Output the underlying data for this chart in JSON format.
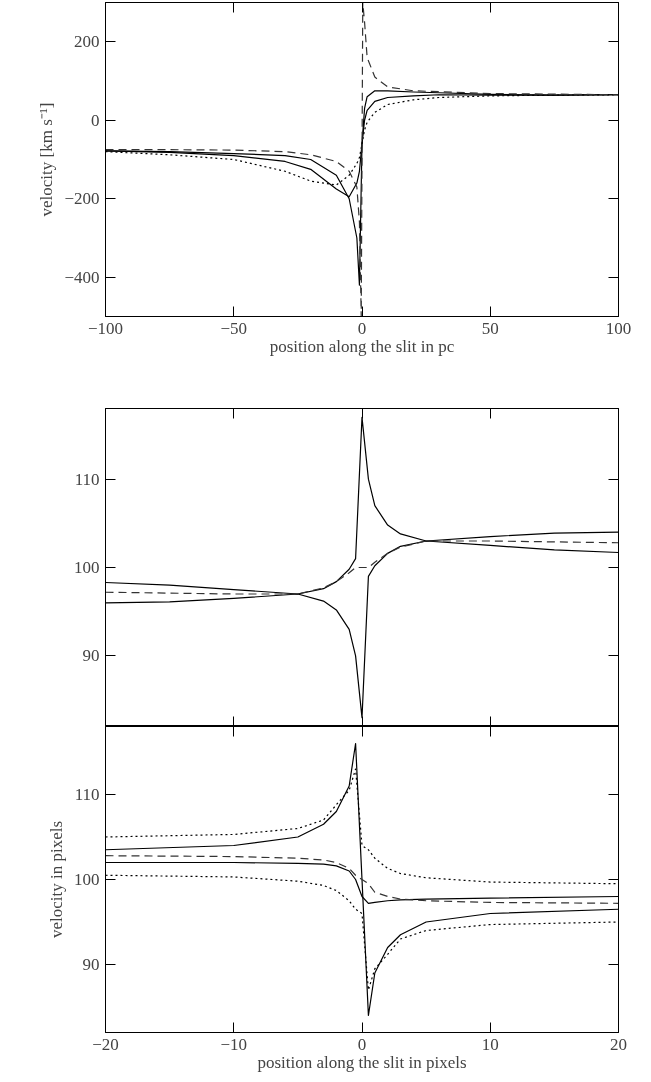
{
  "chart_data": [
    {
      "type": "line",
      "xlabel": "position along the slit in pc",
      "ylabel": "velocity [km s⁻¹]",
      "xlim": [
        -100,
        100
      ],
      "ylim": [
        -500,
        300
      ],
      "xticks": [
        -100,
        -50,
        0,
        50,
        100
      ],
      "yticks": [
        -400,
        -200,
        0,
        200
      ],
      "x": [
        -100,
        -75,
        -50,
        -30,
        -20,
        -10,
        -5,
        -2,
        -1,
        0,
        1,
        2,
        5,
        10,
        20,
        30,
        50,
        75,
        100
      ],
      "series": [
        {
          "color": "#000000",
          "line_style": "solid",
          "values": [
            -78,
            -80,
            -85,
            -90,
            -100,
            -140,
            -200,
            -300,
            -420,
            -60,
            30,
            60,
            75,
            75,
            72,
            70,
            66,
            64,
            65
          ]
        },
        {
          "color": "#000000",
          "line_style": "solid",
          "values": [
            -78,
            -82,
            -90,
            -105,
            -125,
            -175,
            -195,
            -160,
            -130,
            -60,
            0,
            25,
            48,
            58,
            62,
            65,
            64,
            64,
            65
          ]
        },
        {
          "color": "#000000",
          "line_style": "dotted",
          "values": [
            -80,
            -88,
            -100,
            -130,
            -155,
            -165,
            -140,
            -110,
            -95,
            -60,
            -25,
            -5,
            20,
            40,
            52,
            58,
            62,
            64,
            65
          ]
        },
        {
          "color": "#333333",
          "line_style": "dashed",
          "x": [
            -100,
            -75,
            -50,
            -30,
            -20,
            -10,
            -5,
            -2,
            -1,
            -0.3,
            0.3,
            1,
            2,
            5,
            10,
            20,
            50,
            100
          ],
          "values": [
            -75,
            -75,
            -76,
            -80,
            -88,
            -105,
            -130,
            -170,
            -260,
            -500,
            300,
            250,
            160,
            110,
            85,
            75,
            68,
            65
          ]
        }
      ]
    },
    {
      "type": "line",
      "xlim": [
        -20,
        20
      ],
      "ylim": [
        82,
        118
      ],
      "xticks": [
        -20,
        -10,
        0,
        10,
        20
      ],
      "yticks": [
        90,
        100,
        110
      ],
      "tick_labels": "y",
      "x": [
        -20,
        -15,
        -10,
        -5,
        -3,
        -2,
        -1,
        -0.5,
        0,
        0.5,
        1,
        2,
        3,
        5,
        10,
        15,
        20
      ],
      "series": [
        {
          "color": "#000000",
          "line_style": "solid",
          "values": [
            98.3,
            98,
            97.5,
            97,
            97.6,
            98.4,
            99.8,
            101,
            117,
            110,
            107,
            104.8,
            103.8,
            103,
            103.5,
            103.9,
            104
          ]
        },
        {
          "color": "#000000",
          "line_style": "solid",
          "values": [
            96,
            96.1,
            96.5,
            97,
            96.2,
            95.2,
            93,
            90,
            83,
            99,
            100.2,
            101.6,
            102.4,
            103,
            102.5,
            102,
            101.7
          ]
        },
        {
          "color": "#333333",
          "line_style": "dashed",
          "values": [
            97.2,
            97.1,
            97,
            97,
            97.7,
            98.4,
            99.4,
            100,
            100,
            100,
            100.6,
            101.6,
            102.3,
            103,
            103,
            102.9,
            102.8
          ]
        }
      ]
    },
    {
      "type": "line",
      "xlabel": "position along the slit in pixels",
      "ylabel": "velocity in pixels",
      "xlim": [
        -20,
        20
      ],
      "ylim": [
        82,
        118
      ],
      "xticks": [
        -20,
        -10,
        0,
        10,
        20
      ],
      "yticks": [
        90,
        100,
        110
      ],
      "x": [
        -20,
        -10,
        -5,
        -3,
        -2,
        -1,
        -0.5,
        0,
        0.5,
        1,
        2,
        3,
        5,
        10,
        20
      ],
      "series": [
        {
          "color": "#000000",
          "line_style": "dotted",
          "values": [
            105,
            105.3,
            106,
            107,
            108.8,
            110.5,
            113,
            104,
            103.5,
            102.5,
            101.3,
            100.7,
            100.2,
            99.7,
            99.5
          ]
        },
        {
          "color": "#000000",
          "line_style": "dotted",
          "values": [
            100.5,
            100.3,
            99.8,
            99.3,
            98.7,
            97.5,
            96.5,
            96,
            87,
            89.5,
            91.2,
            93,
            94,
            94.7,
            95
          ]
        },
        {
          "color": "#000000",
          "line_style": "solid",
          "values": [
            103.5,
            104,
            105,
            106.5,
            108,
            111,
            116,
            100,
            84,
            89,
            92,
            93.5,
            95,
            96,
            96.5
          ]
        },
        {
          "color": "#000000",
          "line_style": "solid",
          "values": [
            102,
            102,
            101.9,
            101.8,
            101.6,
            101,
            100,
            98,
            97.2,
            97.3,
            97.5,
            97.6,
            97.7,
            97.8,
            98
          ]
        },
        {
          "color": "#333333",
          "line_style": "dashed",
          "values": [
            102.8,
            102.7,
            102.5,
            102.3,
            102,
            101.3,
            100.5,
            100,
            99.5,
            98.5,
            98,
            97.7,
            97.5,
            97.3,
            97.2
          ]
        }
      ]
    }
  ]
}
